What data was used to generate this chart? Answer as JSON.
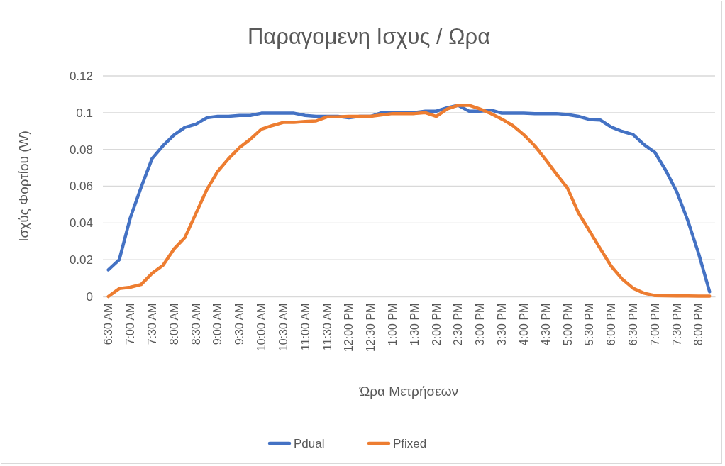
{
  "chart_data": {
    "type": "line",
    "title": "Παραγομενη Ισχυς / Ωρα",
    "xlabel": "Ώρα Μετρήσεων",
    "ylabel": "Ισχύς Φορτίου (W)",
    "categories": [
      "6:30 AM",
      null,
      "7:00 AM",
      null,
      "7:30 AM",
      null,
      "8:00 AM",
      null,
      "8:30 AM",
      null,
      "9:00 AM",
      null,
      "9:30 AM",
      null,
      "10:00 AM",
      null,
      "10:30 AM",
      null,
      "11:00 AM",
      null,
      "11:30 AM",
      null,
      "12:00 PM",
      null,
      "12:30 PM",
      null,
      "1:00 PM",
      null,
      "1:30 PM",
      null,
      "2:00 PM",
      null,
      "2:30 PM",
      null,
      "3:00 PM",
      null,
      "3:30 PM",
      null,
      "4:00 PM",
      null,
      "4:30 PM",
      null,
      "5:00 PM",
      null,
      "5:30 PM",
      null,
      "6:00 PM",
      null,
      "6:30 PM",
      null,
      "7:00 PM",
      null,
      "7:30 PM",
      null,
      "8:00 PM",
      null
    ],
    "series": [
      {
        "name": "Pdual",
        "color": "#4472c4",
        "values": [
          0.0145,
          0.02,
          0.0426,
          0.0594,
          0.075,
          0.082,
          0.0878,
          0.092,
          0.0937,
          0.0972,
          0.098,
          0.098,
          0.0985,
          0.0985,
          0.0997,
          0.0997,
          0.0997,
          0.0997,
          0.0985,
          0.098,
          0.098,
          0.098,
          0.0972,
          0.098,
          0.098,
          0.1,
          0.1,
          0.1,
          0.1,
          0.1008,
          0.1008,
          0.1027,
          0.104,
          0.1008,
          0.1008,
          0.1014,
          0.0997,
          0.0997,
          0.0997,
          0.0995,
          0.0995,
          0.0995,
          0.099,
          0.098,
          0.0963,
          0.096,
          0.0922,
          0.0898,
          0.0881,
          0.0826,
          0.0784,
          0.0685,
          0.0569,
          0.0414,
          0.0233,
          0.0026
        ]
      },
      {
        "name": "Pfixed",
        "color": "#ed7d31",
        "values": [
          0,
          0.0043,
          0.005,
          0.0065,
          0.0126,
          0.017,
          0.0258,
          0.032,
          0.045,
          0.058,
          0.068,
          0.075,
          0.081,
          0.0856,
          0.091,
          0.093,
          0.0947,
          0.0947,
          0.0952,
          0.0955,
          0.0977,
          0.0977,
          0.098,
          0.098,
          0.098,
          0.0988,
          0.0995,
          0.0995,
          0.0995,
          0.1,
          0.098,
          0.102,
          0.104,
          0.104,
          0.102,
          0.0995,
          0.0965,
          0.093,
          0.088,
          0.082,
          0.0745,
          0.0665,
          0.059,
          0.0455,
          0.0358,
          0.026,
          0.0165,
          0.0095,
          0.0045,
          0.0018,
          0.0005,
          0.0004,
          0.0003,
          0.0003,
          0.0002,
          0.0002
        ]
      }
    ],
    "ylim": [
      0,
      0.12
    ],
    "yticks": [
      0,
      0.02,
      0.04,
      0.06,
      0.08,
      0.1,
      0.12
    ],
    "grid": "y",
    "legend": "bottom",
    "marker": "none",
    "line_style": "solid"
  }
}
